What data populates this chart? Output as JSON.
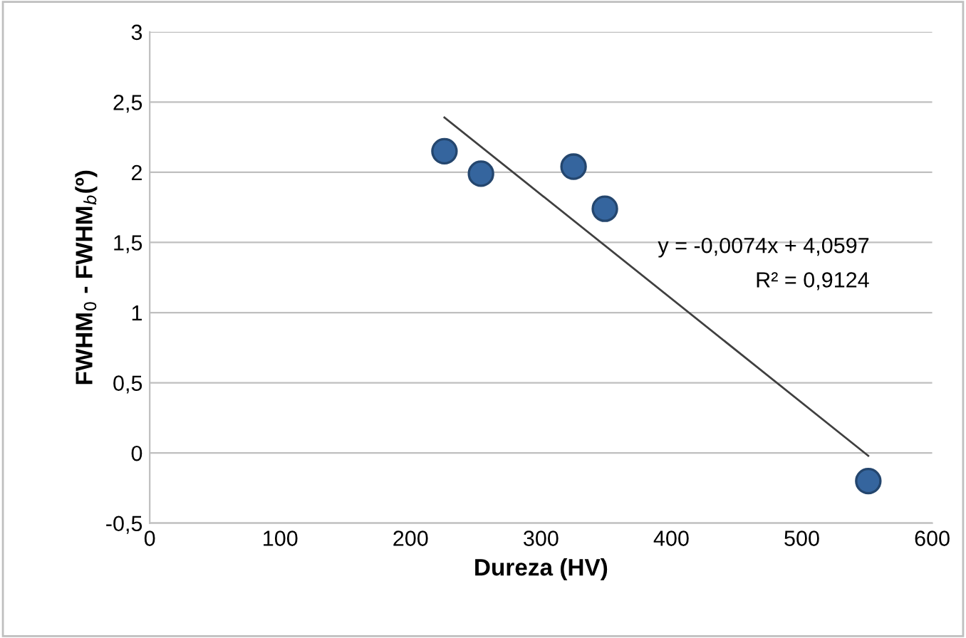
{
  "chart_data": {
    "type": "scatter",
    "xlabel": "Dureza (HV)",
    "ylabel": "FWHM$_{0}$ - FWHM$_{b}$(º)",
    "series": [
      {
        "color": "#35659e",
        "x": [
          226,
          254,
          325,
          349,
          551
        ],
        "values": [
          2.15,
          1.99,
          2.04,
          1.74,
          -0.2
        ],
        "marker": "circle"
      },
      {
        "type": "line",
        "color": "#404040",
        "x": [
          226,
          551
        ],
        "values": [
          2.39,
          -0.02
        ],
        "marker": "none",
        "line_style": "solid"
      }
    ],
    "annotations": [
      "y = -0,0074x + 4,0597",
      "R² = 0,9124"
    ],
    "xlim": [
      0,
      600
    ],
    "xticks": [
      0,
      100,
      200,
      300,
      400,
      500,
      600
    ],
    "ylim": [
      -0.5,
      3
    ],
    "yticks": [
      {
        "value": -0.5,
        "label": "-0,5"
      },
      0,
      {
        "value": 0.5,
        "label": "0,5"
      },
      1,
      {
        "value": 1.5,
        "label": "1,5"
      },
      2,
      {
        "value": 2.5,
        "label": "2,5"
      },
      3
    ],
    "grid": "y",
    "legend": false
  }
}
